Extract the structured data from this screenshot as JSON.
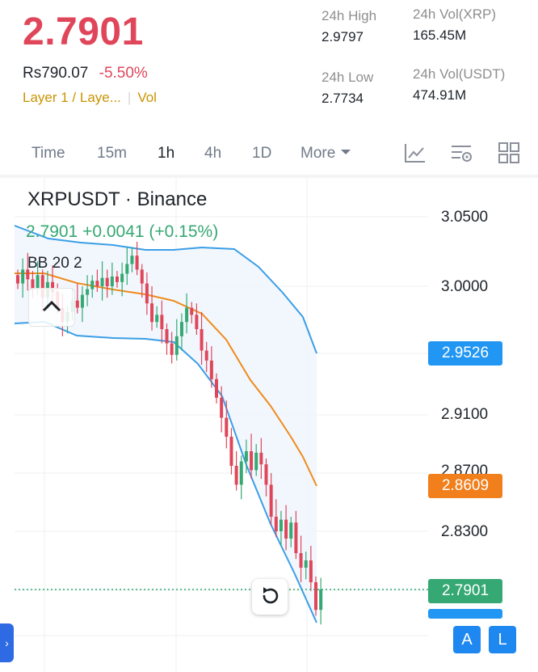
{
  "ticker": {
    "last_price": "2.7901",
    "fiat_price": "Rs790.07",
    "change_pct": "-5.50%",
    "tag": "Layer 1 / Laye...",
    "vol_tag": "Vol"
  },
  "stats": {
    "high_label": "24h High",
    "high_value": "2.9797",
    "low_label": "24h Low",
    "low_value": "2.7734",
    "vol_base_label": "24h Vol(XRP)",
    "vol_base_value": "165.45M",
    "vol_quote_label": "24h Vol(USDT)",
    "vol_quote_value": "474.91M"
  },
  "timeframes": {
    "time": "Time",
    "m15": "15m",
    "h1": "1h",
    "h4": "4h",
    "d1": "1D",
    "more": "More"
  },
  "chart": {
    "title": "XRPUSDT · Binance",
    "ohlc_line": "2.7901  +0.0041 (+0.15%)",
    "indicator": "BB  20 2",
    "axis_labels": [
      "3.0500",
      "3.0000",
      "2.9100",
      "2.8300"
    ],
    "axis_partial": "2.8700",
    "upper_band_tag": "2.9526",
    "middle_band_tag": "2.8609",
    "last_price_tag": "2.7901",
    "colors": {
      "up": "#35a873",
      "down": "#e0465a",
      "upper_band": "#3b9ee6",
      "middle_band": "#f08b1d",
      "band_fill": "#eef5fc"
    }
  },
  "buttons": {
    "side_arrow": "›",
    "a_label": "A",
    "l_label": "L"
  }
}
